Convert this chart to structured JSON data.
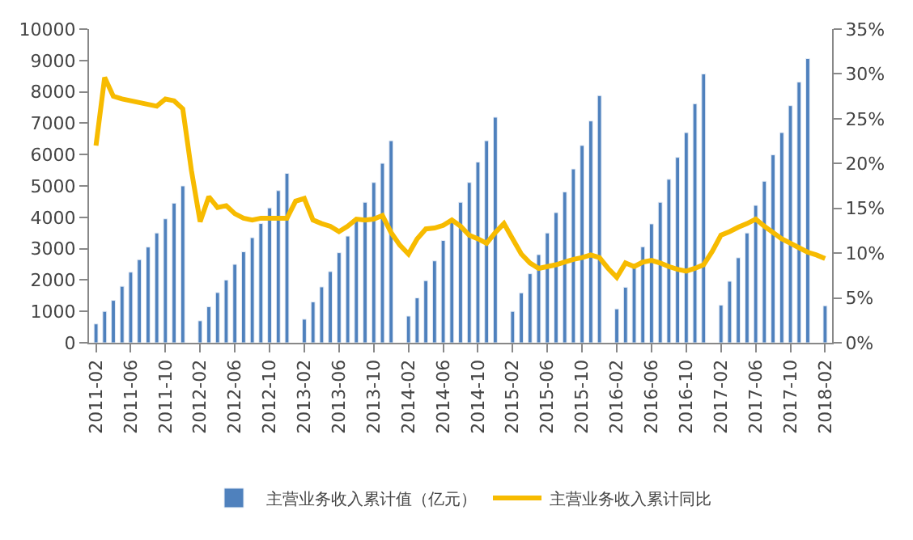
{
  "chart_data": {
    "type": "bar",
    "categories": [
      "2011-02",
      null,
      null,
      null,
      "2011-06",
      null,
      null,
      null,
      "2011-10",
      null,
      null,
      null,
      "2012-02",
      null,
      null,
      null,
      "2012-06",
      null,
      null,
      null,
      "2012-10",
      null,
      null,
      null,
      "2013-02",
      null,
      null,
      null,
      "2013-06",
      null,
      null,
      null,
      "2013-10",
      null,
      null,
      null,
      "2014-02",
      null,
      null,
      null,
      "2014-06",
      null,
      null,
      null,
      "2014-10",
      null,
      null,
      null,
      "2015-02",
      null,
      null,
      null,
      "2015-06",
      null,
      null,
      null,
      "2015-10",
      null,
      null,
      null,
      "2016-02",
      null,
      null,
      null,
      "2016-06",
      null,
      null,
      null,
      "2016-10",
      null,
      null,
      null,
      "2017-02",
      null,
      null,
      null,
      "2017-06",
      null,
      null,
      null,
      "2017-10",
      null,
      null,
      null,
      "2018-02"
    ],
    "series": [
      {
        "name": "主营业务收入累计值（亿元）",
        "color": "#4f81bd",
        "values": [
          600,
          1000,
          1350,
          1800,
          2250,
          2650,
          3050,
          3500,
          3950,
          4450,
          5000,
          null,
          700,
          1150,
          1600,
          2000,
          2500,
          2900,
          3350,
          3800,
          4300,
          4850,
          5400,
          null,
          750,
          1300,
          1780,
          2270,
          2870,
          3400,
          3890,
          4480,
          5110,
          5720,
          6440,
          null,
          850,
          1430,
          1980,
          2610,
          3260,
          3830,
          4480,
          5110,
          5760,
          6440,
          7190,
          null,
          1000,
          1590,
          2200,
          2810,
          3500,
          4150,
          4810,
          5540,
          6290,
          7070,
          7880,
          null,
          1080,
          1770,
          2420,
          3060,
          3790,
          4480,
          5210,
          5910,
          6700,
          7620,
          8570,
          null,
          1200,
          1960,
          2710,
          3500,
          4380,
          5150,
          5990,
          6700,
          7560,
          8310,
          9060,
          null,
          1180
        ]
      },
      {
        "name": "主营业务收入累计同比",
        "color": "#f7bb00",
        "type": "line",
        "axis": "y2",
        "values": [
          22,
          29.6,
          27.5,
          27.2,
          27.0,
          26.8,
          26.6,
          26.4,
          27.2,
          27.0,
          26.1,
          19.2,
          13.5,
          16.3,
          15.1,
          15.3,
          14.4,
          13.9,
          13.7,
          13.9,
          13.9,
          13.9,
          13.9,
          15.8,
          16.1,
          13.7,
          13.3,
          13.0,
          12.4,
          13.0,
          13.8,
          13.7,
          13.8,
          14.2,
          12.3,
          10.9,
          9.9,
          11.6,
          12.7,
          12.8,
          13.1,
          13.7,
          13.0,
          12.0,
          11.6,
          11.1,
          12.3,
          13.3,
          11.6,
          9.9,
          8.9,
          8.3,
          8.5,
          8.7,
          9.0,
          9.3,
          9.5,
          9.8,
          9.5,
          8.3,
          7.3,
          8.9,
          8.5,
          9.0,
          9.2,
          8.9,
          8.5,
          8.2,
          8.0,
          8.3,
          8.7,
          10.2,
          12.0,
          12.4,
          12.9,
          13.3,
          13.8,
          13.0,
          12.3,
          11.6,
          11.1,
          10.6,
          10.1,
          9.8,
          9.4
        ]
      }
    ],
    "ylim": [
      0,
      10000
    ],
    "yticks": [
      0,
      1000,
      2000,
      3000,
      4000,
      5000,
      6000,
      7000,
      8000,
      9000,
      10000
    ],
    "y2lim": [
      0,
      35
    ],
    "y2ticks": [
      {
        "value": 0,
        "label": "0%"
      },
      {
        "value": 5,
        "label": "5%"
      },
      {
        "value": 10,
        "label": "10%"
      },
      {
        "value": 15,
        "label": "15%"
      },
      {
        "value": 20,
        "label": "20%"
      },
      {
        "value": 25,
        "label": "25%"
      },
      {
        "value": 30,
        "label": "30%"
      },
      {
        "value": 35,
        "label": "35%"
      }
    ],
    "legend": "bottom"
  }
}
